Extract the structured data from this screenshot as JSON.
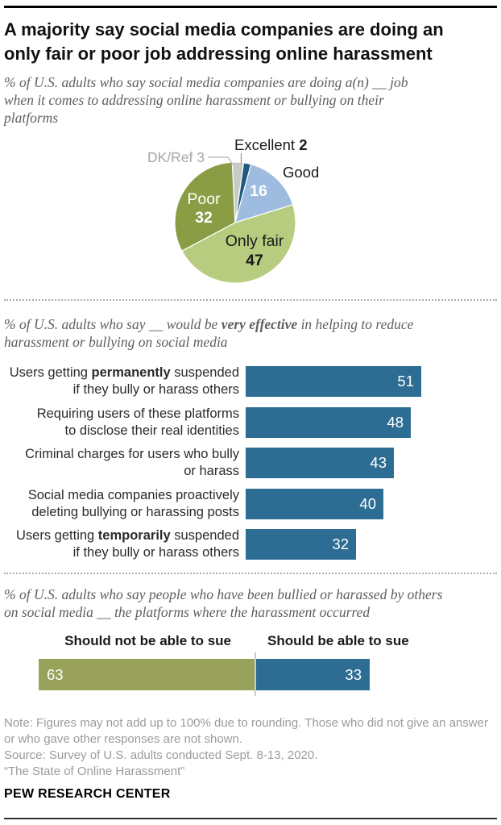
{
  "header": {
    "title_lines": [
      "A majority say social media companies are doing an",
      "only fair or poor job addressing online harassment"
    ]
  },
  "section1": {
    "intro_lines": [
      "% of U.S. adults who say social media companies are doing a(n) __ job",
      "when it comes to addressing online harassment or bullying on their",
      "platforms"
    ]
  },
  "section2": {
    "intro_line1_pre": "% of U.S. adults who say __ would be ",
    "intro_line1_bold": "very effective",
    "intro_line1_post": " in helping to reduce",
    "intro_line2": "harassment or bullying on social media"
  },
  "section3": {
    "intro_lines": [
      "% of U.S. adults who say people who have been bullied or harassed by others",
      "on social media __ the platforms where the harassment occurred"
    ],
    "left_header": "Should not be able to sue",
    "right_header": "Should be able to sue"
  },
  "footer": {
    "note_lines": [
      "Note: Figures may not add up to 100% due to rounding. Those who did not give an answer",
      "or who gave other responses are not shown.",
      "Source: Survey of U.S. adults conducted Sept. 8-13, 2020.",
      "“The State of Online Harassment”"
    ],
    "brand": "PEW RESEARCH CENTER"
  },
  "chart_data": [
    {
      "type": "pie",
      "title": "% of U.S. adults who say social media companies are doing a(n) __ job when it comes to addressing online harassment or bullying on their platforms",
      "labels": [
        "Excellent",
        "Good",
        "Only fair",
        "Poor",
        "DK/Ref"
      ],
      "values": [
        2,
        16,
        47,
        32,
        3
      ],
      "colors": [
        "#1f5a80",
        "#9dbcdf",
        "#b7cc7e",
        "#8a9c44",
        "#c9c9c7"
      ],
      "callout_labels": [
        "Excellent 2",
        "DK/Ref 3"
      ],
      "legend_position": "on-slice"
    },
    {
      "type": "bar",
      "orientation": "horizontal",
      "title": "% of U.S. adults who say __ would be very effective in helping to reduce harassment or bullying on social media",
      "categories": [
        "Users getting permanently suspended if they bully or harass others",
        "Requiring users of these platforms to disclose their real identities",
        "Criminal charges for users who bully or harass",
        "Social media companies proactively deleting bullying or harassing posts",
        "Users getting temporarily suspended if they bully or harass others"
      ],
      "values": [
        51,
        48,
        43,
        40,
        32
      ],
      "bar_color": "#2d6d94",
      "value_label_color": "#ffffff",
      "xlim": [
        0,
        100
      ],
      "grid": false,
      "label_lines": [
        [
          [
            {
              "t": "Users getting "
            },
            {
              "t": "permanently",
              "b": true
            },
            {
              "t": " suspended"
            }
          ],
          [
            {
              "t": "if they bully or harass others"
            }
          ]
        ],
        [
          [
            {
              "t": "Requiring users of these platforms"
            }
          ],
          [
            {
              "t": "to disclose their real identities"
            }
          ]
        ],
        [
          [
            {
              "t": "Criminal charges for users who bully"
            }
          ],
          [
            {
              "t": "or harass"
            }
          ]
        ],
        [
          [
            {
              "t": "Social media companies proactively"
            }
          ],
          [
            {
              "t": "deleting bullying or harassing posts"
            }
          ]
        ],
        [
          [
            {
              "t": "Users getting "
            },
            {
              "t": "temporarily",
              "b": true
            },
            {
              "t": " suspended"
            }
          ],
          [
            {
              "t": "if they bully or harass others"
            }
          ]
        ]
      ]
    },
    {
      "type": "bar-stacked",
      "title": "% of U.S. adults who say people who have been bullied or harassed by others on social media __ the platforms where the harassment occurred",
      "categories": [
        "Should not be able to sue",
        "Should be able to sue"
      ],
      "values": [
        63,
        33
      ],
      "colors": [
        "#98a25b",
        "#2d6d94"
      ],
      "value_label_color": "#ffffff",
      "xlim": [
        0,
        100
      ]
    }
  ]
}
